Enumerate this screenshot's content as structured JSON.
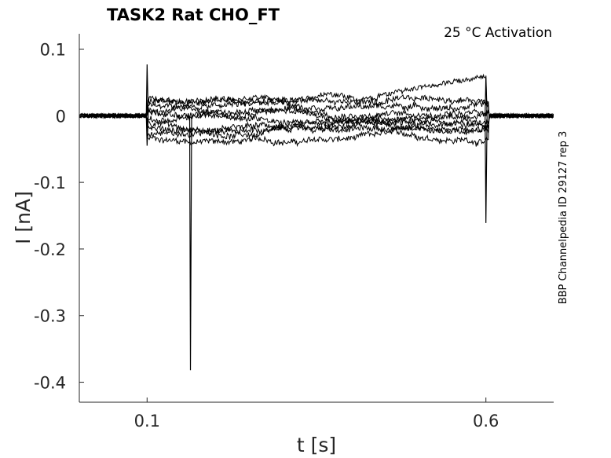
{
  "chart_data": {
    "type": "line",
    "title": "TASK2  Rat  CHO_FT",
    "annotation": "25 °C  Activation",
    "side_label": "BBP Channelpedia ID 29127 rep 3",
    "xlabel": "t [s]",
    "ylabel": "I [nA]",
    "xlim": [
      0.0,
      0.7
    ],
    "ylim": [
      -0.43,
      0.123
    ],
    "x_ticks": [
      0.1,
      0.6
    ],
    "x_tick_labels": [
      "0.1",
      "0.6"
    ],
    "y_ticks": [
      0.1,
      0,
      -0.1,
      -0.2,
      -0.3,
      -0.4
    ],
    "y_tick_labels": [
      "0.1",
      "0",
      "-0.1",
      "-0.2",
      "-0.3",
      "-0.4"
    ],
    "grid": false,
    "box": "left-bottom axes only",
    "line_color": "#000000",
    "stimulus": {
      "on": 0.1,
      "off": 0.6
    },
    "baseline": 0.0,
    "sweep_levels": [
      -0.035,
      -0.028,
      -0.02,
      -0.012,
      -0.005,
      0.003,
      0.01,
      0.016,
      0.022,
      0.026
    ],
    "noise_amplitude": 0.004,
    "transients": [
      {
        "t": 0.1,
        "peak": 0.077
      },
      {
        "t": 0.1,
        "peak": -0.045
      },
      {
        "t": 0.164,
        "peak": -0.382
      },
      {
        "t": 0.6,
        "peak": -0.161
      },
      {
        "t": 0.6,
        "peak": 0.06
      }
    ],
    "late_elevated_sweep": {
      "t_start": 0.44,
      "t_end": 0.6,
      "level_start": 0.03,
      "level_end": 0.06
    }
  }
}
